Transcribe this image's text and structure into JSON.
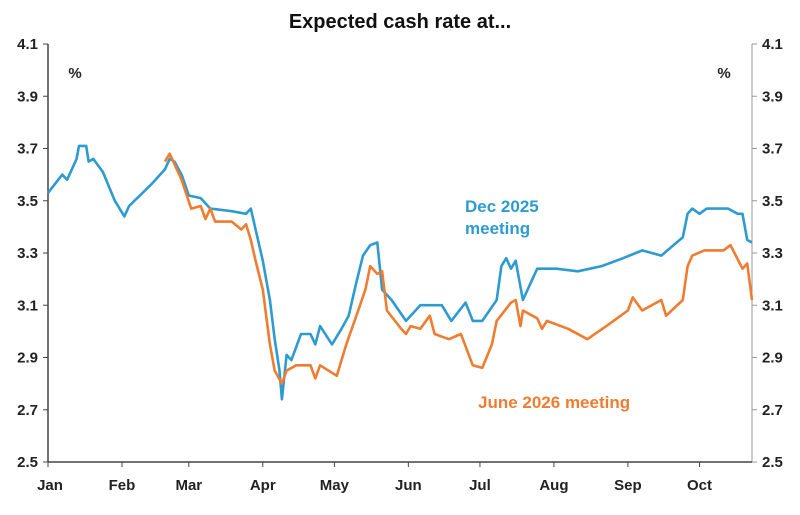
{
  "chart_data": {
    "type": "line",
    "title": "Expected cash rate at...",
    "ylabel_left": "%",
    "ylabel_right": "%",
    "ylim": [
      2.5,
      4.1
    ],
    "yticks": [
      "2.5",
      "2.7",
      "2.9",
      "3.1",
      "3.3",
      "3.5",
      "3.7",
      "3.9",
      "4.1"
    ],
    "xlim": [
      "2025-01-01",
      "2025-10-23"
    ],
    "xticks": [
      {
        "label": "Jan",
        "date": "2025-01-01"
      },
      {
        "label": "Feb",
        "date": "2025-02-01"
      },
      {
        "label": "Mar",
        "date": "2025-03-01"
      },
      {
        "label": "Apr",
        "date": "2025-04-01"
      },
      {
        "label": "May",
        "date": "2025-05-01"
      },
      {
        "label": "Jun",
        "date": "2025-06-01"
      },
      {
        "label": "Jul",
        "date": "2025-07-01"
      },
      {
        "label": "Aug",
        "date": "2025-08-01"
      },
      {
        "label": "Sep",
        "date": "2025-09-01"
      },
      {
        "label": "Oct",
        "date": "2025-10-01"
      }
    ],
    "grid": false,
    "series": [
      {
        "name": "Dec 2025 meeting",
        "label_lines": [
          "Dec 2025",
          "meeting"
        ],
        "color": "#2e9bd0",
        "points": [
          [
            "2025-01-01",
            3.53
          ],
          [
            "2025-01-07",
            3.6
          ],
          [
            "2025-01-09",
            3.58
          ],
          [
            "2025-01-13",
            3.66
          ],
          [
            "2025-01-14",
            3.71
          ],
          [
            "2025-01-17",
            3.71
          ],
          [
            "2025-01-18",
            3.65
          ],
          [
            "2025-01-20",
            3.66
          ],
          [
            "2025-01-24",
            3.61
          ],
          [
            "2025-01-29",
            3.5
          ],
          [
            "2025-01-31",
            3.47
          ],
          [
            "2025-02-02",
            3.44
          ],
          [
            "2025-02-04",
            3.48
          ],
          [
            "2025-02-13",
            3.56
          ],
          [
            "2025-02-19",
            3.62
          ],
          [
            "2025-02-21",
            3.66
          ],
          [
            "2025-02-23",
            3.65
          ],
          [
            "2025-02-26",
            3.6
          ],
          [
            "2025-03-01",
            3.52
          ],
          [
            "2025-03-06",
            3.51
          ],
          [
            "2025-03-10",
            3.47
          ],
          [
            "2025-03-19",
            3.46
          ],
          [
            "2025-03-25",
            3.45
          ],
          [
            "2025-03-27",
            3.47
          ],
          [
            "2025-03-29",
            3.39
          ],
          [
            "2025-04-01",
            3.27
          ],
          [
            "2025-04-04",
            3.12
          ],
          [
            "2025-04-06",
            2.97
          ],
          [
            "2025-04-08",
            2.85
          ],
          [
            "2025-04-09",
            2.74
          ],
          [
            "2025-04-11",
            2.91
          ],
          [
            "2025-04-13",
            2.89
          ],
          [
            "2025-04-17",
            2.99
          ],
          [
            "2025-04-21",
            2.99
          ],
          [
            "2025-04-23",
            2.95
          ],
          [
            "2025-04-25",
            3.02
          ],
          [
            "2025-04-30",
            2.95
          ],
          [
            "2025-05-04",
            3.01
          ],
          [
            "2025-05-07",
            3.06
          ],
          [
            "2025-05-10",
            3.18
          ],
          [
            "2025-05-13",
            3.29
          ],
          [
            "2025-05-16",
            3.33
          ],
          [
            "2025-05-19",
            3.34
          ],
          [
            "2025-05-21",
            3.16
          ],
          [
            "2025-05-25",
            3.12
          ],
          [
            "2025-05-31",
            3.04
          ],
          [
            "2025-06-06",
            3.1
          ],
          [
            "2025-06-15",
            3.1
          ],
          [
            "2025-06-19",
            3.04
          ],
          [
            "2025-06-25",
            3.11
          ],
          [
            "2025-06-28",
            3.04
          ],
          [
            "2025-07-02",
            3.04
          ],
          [
            "2025-07-08",
            3.12
          ],
          [
            "2025-07-10",
            3.25
          ],
          [
            "2025-07-12",
            3.28
          ],
          [
            "2025-07-14",
            3.24
          ],
          [
            "2025-07-16",
            3.27
          ],
          [
            "2025-07-19",
            3.12
          ],
          [
            "2025-07-25",
            3.24
          ],
          [
            "2025-08-02",
            3.24
          ],
          [
            "2025-08-11",
            3.23
          ],
          [
            "2025-08-21",
            3.25
          ],
          [
            "2025-08-30",
            3.28
          ],
          [
            "2025-09-07",
            3.31
          ],
          [
            "2025-09-15",
            3.29
          ],
          [
            "2025-09-24",
            3.36
          ],
          [
            "2025-09-26",
            3.45
          ],
          [
            "2025-09-28",
            3.47
          ],
          [
            "2025-10-01",
            3.45
          ],
          [
            "2025-10-04",
            3.47
          ],
          [
            "2025-10-13",
            3.47
          ],
          [
            "2025-10-17",
            3.45
          ],
          [
            "2025-10-19",
            3.45
          ],
          [
            "2025-10-21",
            3.35
          ],
          [
            "2025-10-23",
            3.34
          ]
        ]
      },
      {
        "name": "June 2026 meeting",
        "label_lines": [
          "June 2026 meeting"
        ],
        "color": "#ee7d31",
        "points": [
          [
            "2025-02-19",
            3.65
          ],
          [
            "2025-02-21",
            3.68
          ],
          [
            "2025-02-26",
            3.58
          ],
          [
            "2025-03-02",
            3.47
          ],
          [
            "2025-03-06",
            3.48
          ],
          [
            "2025-03-08",
            3.43
          ],
          [
            "2025-03-10",
            3.47
          ],
          [
            "2025-03-12",
            3.42
          ],
          [
            "2025-03-19",
            3.42
          ],
          [
            "2025-03-23",
            3.39
          ],
          [
            "2025-03-25",
            3.41
          ],
          [
            "2025-03-27",
            3.35
          ],
          [
            "2025-03-29",
            3.27
          ],
          [
            "2025-04-01",
            3.16
          ],
          [
            "2025-04-04",
            2.95
          ],
          [
            "2025-04-06",
            2.85
          ],
          [
            "2025-04-09",
            2.8
          ],
          [
            "2025-04-11",
            2.85
          ],
          [
            "2025-04-15",
            2.87
          ],
          [
            "2025-04-21",
            2.87
          ],
          [
            "2025-04-23",
            2.82
          ],
          [
            "2025-04-25",
            2.87
          ],
          [
            "2025-05-02",
            2.83
          ],
          [
            "2025-05-06",
            2.95
          ],
          [
            "2025-05-11",
            3.08
          ],
          [
            "2025-05-14",
            3.16
          ],
          [
            "2025-05-16",
            3.25
          ],
          [
            "2025-05-19",
            3.22
          ],
          [
            "2025-05-21",
            3.23
          ],
          [
            "2025-05-23",
            3.08
          ],
          [
            "2025-05-29",
            3.01
          ],
          [
            "2025-05-31",
            2.99
          ],
          [
            "2025-06-02",
            3.02
          ],
          [
            "2025-06-06",
            3.01
          ],
          [
            "2025-06-10",
            3.06
          ],
          [
            "2025-06-12",
            2.99
          ],
          [
            "2025-06-18",
            2.97
          ],
          [
            "2025-06-23",
            2.99
          ],
          [
            "2025-06-28",
            2.87
          ],
          [
            "2025-07-02",
            2.86
          ],
          [
            "2025-07-06",
            2.95
          ],
          [
            "2025-07-08",
            3.04
          ],
          [
            "2025-07-14",
            3.11
          ],
          [
            "2025-07-16",
            3.12
          ],
          [
            "2025-07-18",
            3.02
          ],
          [
            "2025-07-19",
            3.08
          ],
          [
            "2025-07-25",
            3.05
          ],
          [
            "2025-07-27",
            3.01
          ],
          [
            "2025-07-29",
            3.04
          ],
          [
            "2025-08-07",
            3.01
          ],
          [
            "2025-08-15",
            2.97
          ],
          [
            "2025-08-23",
            3.02
          ],
          [
            "2025-09-01",
            3.08
          ],
          [
            "2025-09-03",
            3.13
          ],
          [
            "2025-09-07",
            3.08
          ],
          [
            "2025-09-15",
            3.12
          ],
          [
            "2025-09-17",
            3.06
          ],
          [
            "2025-09-24",
            3.12
          ],
          [
            "2025-09-26",
            3.25
          ],
          [
            "2025-09-28",
            3.29
          ],
          [
            "2025-10-03",
            3.31
          ],
          [
            "2025-10-11",
            3.31
          ],
          [
            "2025-10-14",
            3.33
          ],
          [
            "2025-10-19",
            3.24
          ],
          [
            "2025-10-21",
            3.26
          ],
          [
            "2025-10-23",
            3.12
          ]
        ]
      }
    ]
  }
}
